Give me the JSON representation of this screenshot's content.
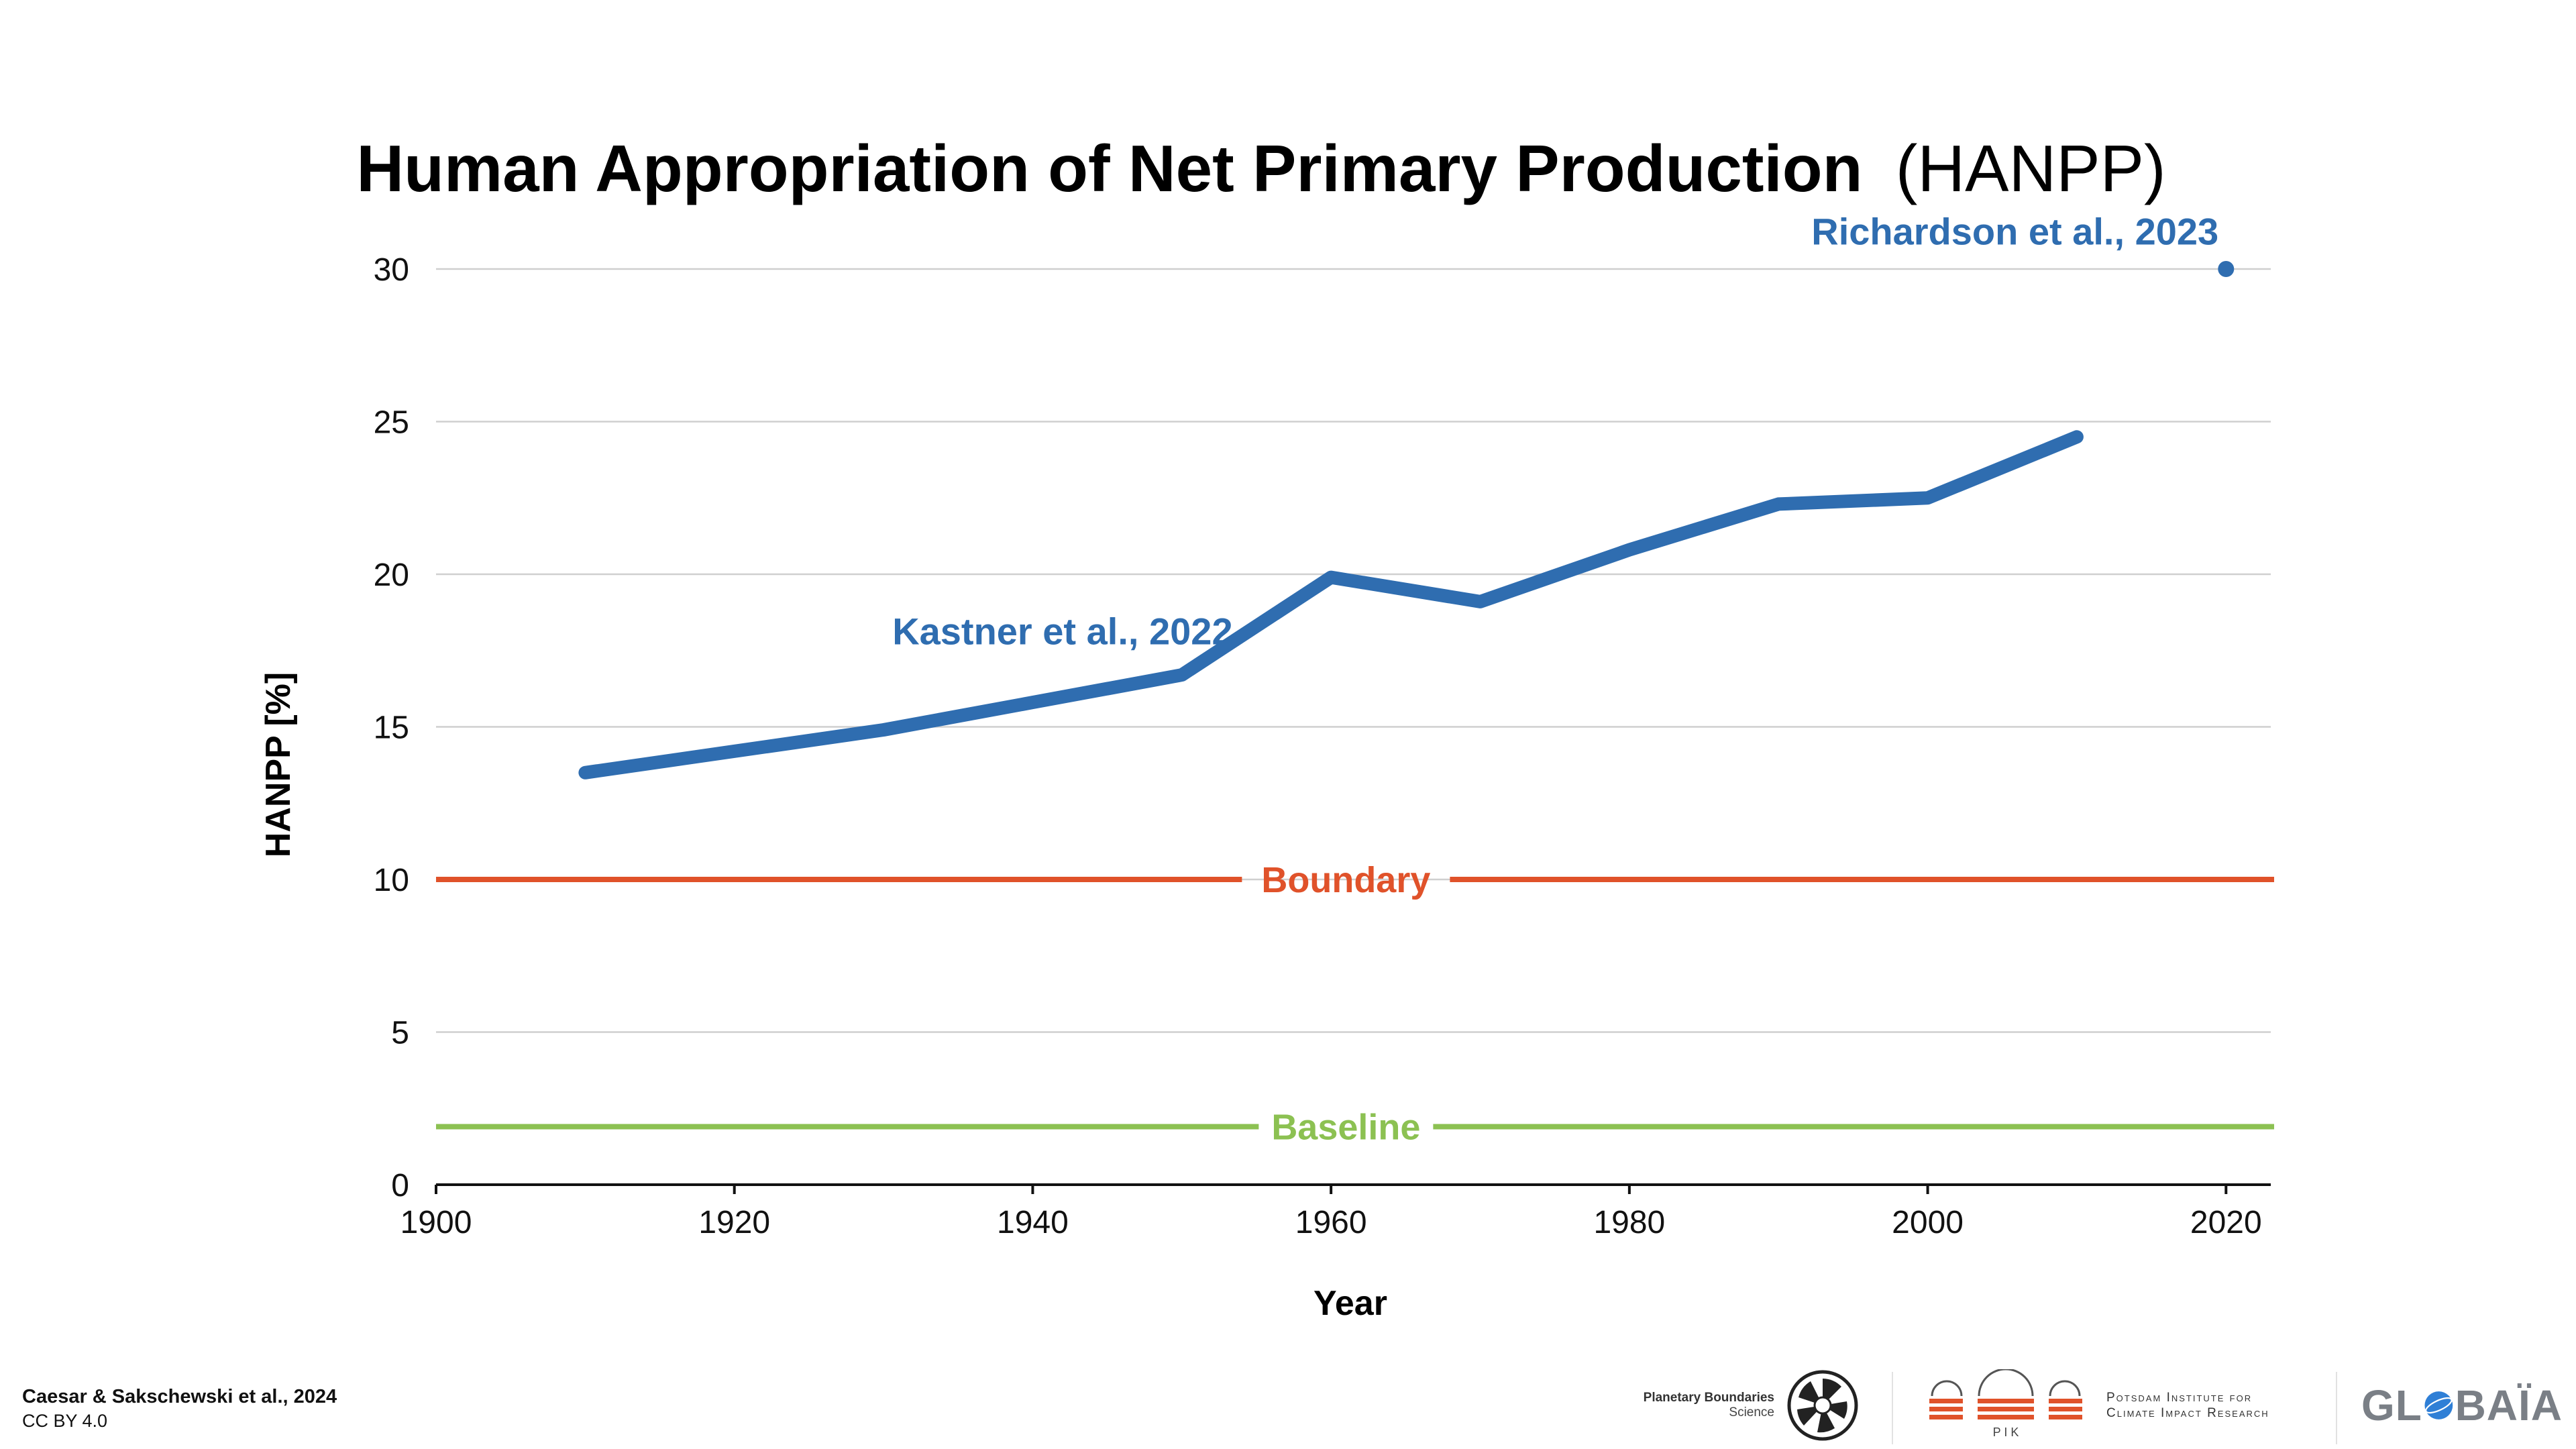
{
  "chart_data": {
    "type": "line",
    "title": "Human Appropriation of Net Primary Production",
    "title_suffix": "(HANPP)",
    "xlabel": "Year",
    "ylabel": "HANPP [%]",
    "xlim": [
      1900,
      2023
    ],
    "ylim": [
      0,
      32
    ],
    "x_ticks": [
      1900,
      1920,
      1940,
      1960,
      1980,
      2000,
      2020
    ],
    "y_ticks": [
      0,
      5,
      10,
      15,
      20,
      25,
      30
    ],
    "grid": "horizontal",
    "legend": "none",
    "series": [
      {
        "name": "Kastner et al., 2022",
        "color": "#2f6db0",
        "x": [
          1910,
          1920,
          1930,
          1940,
          1950,
          1960,
          1970,
          1980,
          1990,
          2000,
          2010
        ],
        "y": [
          13.5,
          14.2,
          14.9,
          15.8,
          16.7,
          19.9,
          19.1,
          20.8,
          22.3,
          22.5,
          24.5
        ]
      },
      {
        "name": "Richardson et al., 2023",
        "color": "#2f6db0",
        "x": [
          2020
        ],
        "y": [
          30
        ]
      }
    ],
    "reference_lines": [
      {
        "label": "Boundary",
        "value": 10,
        "color": "#e0522a"
      },
      {
        "label": "Baseline",
        "value": 1.9,
        "color": "#8cc152"
      }
    ]
  },
  "footer": {
    "citation": "Caesar & Sakschewski et al., 2024",
    "license": "CC BY 4.0"
  },
  "logos": {
    "pb_line1": "Planetary Boundaries",
    "pb_line2": "Science",
    "pik_letters": "P I K",
    "pik_line1": "Potsdam Institute for",
    "pik_line2": "Climate Impact Research",
    "globaia_pre": "GL",
    "globaia_post": "BAÏA"
  },
  "colors": {
    "series": "#2f6db0",
    "boundary": "#e0522a",
    "baseline": "#8cc152",
    "grid": "#cfcfcf",
    "axis": "#111111"
  }
}
